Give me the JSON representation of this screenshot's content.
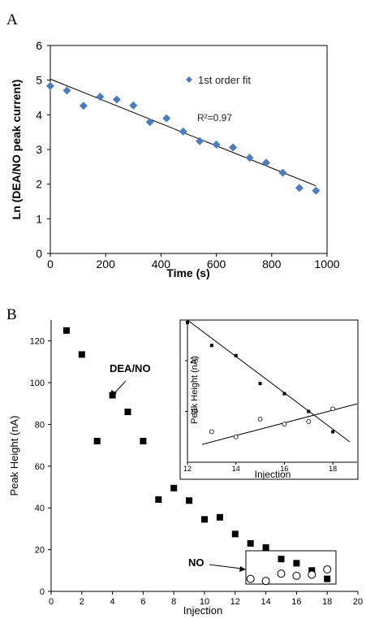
{
  "panels": {
    "a_label": "A",
    "b_label": "B"
  },
  "chart_data": [
    {
      "type": "scatter",
      "panel": "A",
      "xlabel": "Time (s)",
      "ylabel": "Ln (DEA/NO peak current)",
      "xlim": [
        0,
        1000
      ],
      "ylim": [
        0,
        6
      ],
      "xticks": [
        0,
        200,
        400,
        600,
        800,
        1000
      ],
      "yticks": [
        0,
        1,
        2,
        3,
        4,
        5,
        6
      ],
      "grid": false,
      "legend": "inside top-right",
      "series": [
        {
          "name": "1st order fit",
          "marker": "diamond",
          "color": "#4a7cc0",
          "x": [
            0,
            60,
            120,
            180,
            240,
            300,
            360,
            420,
            480,
            540,
            600,
            660,
            720,
            780,
            840,
            900,
            960
          ],
          "y": [
            4.83,
            4.7,
            4.26,
            4.52,
            4.44,
            4.27,
            3.79,
            3.9,
            3.52,
            3.24,
            3.14,
            3.06,
            2.76,
            2.62,
            2.33,
            1.89,
            1.81
          ]
        }
      ],
      "trendline": {
        "x": [
          0,
          960
        ],
        "y": [
          5.03,
          1.95
        ],
        "color": "#000000"
      },
      "annotations": [
        {
          "text": "R²=0.97"
        }
      ]
    },
    {
      "type": "scatter",
      "panel": "B",
      "xlabel": "Injection",
      "ylabel": "Peak Height (nA)",
      "xlim": [
        0,
        20
      ],
      "ylim": [
        0,
        130
      ],
      "xticks": [
        0,
        2,
        4,
        6,
        8,
        10,
        12,
        14,
        16,
        18,
        20
      ],
      "yticks": [
        0,
        20,
        40,
        60,
        80,
        100,
        120
      ],
      "grid": false,
      "series": [
        {
          "marker": "filled-square",
          "color": "#000000",
          "x": [
            1,
            2,
            3,
            4,
            5,
            6,
            7,
            8,
            9,
            10,
            11,
            12,
            13,
            14,
            15,
            16,
            17,
            18
          ],
          "y": [
            125,
            113.5,
            72,
            94,
            86,
            72,
            44,
            49.5,
            43.5,
            34.5,
            35.5,
            27.5,
            23,
            21,
            15.5,
            13.5,
            10,
            6
          ]
        },
        {
          "marker": "open-circle",
          "color": "#000000",
          "x": [
            13,
            14,
            15,
            16,
            17,
            18
          ],
          "y": [
            6,
            5,
            8.5,
            7.5,
            8,
            10.5
          ]
        }
      ],
      "annotations": [
        {
          "text": "DEA/NO",
          "target_x": 4,
          "target_y": 94
        },
        {
          "text": "NO",
          "target_x": 12.9,
          "target_y": 6.5
        }
      ],
      "inset": {
        "type": "scatter",
        "xlabel": "Injection",
        "ylabel": "Peak Height (nA)",
        "xlim": [
          12,
          19
        ],
        "ylim": [
          0,
          28
        ],
        "xticks": [
          12,
          14,
          16,
          18
        ],
        "yticks": [
          10,
          20
        ],
        "series": [
          {
            "marker": "filled-square",
            "x": [
              12,
              13,
              14,
              15,
              16,
              17,
              18
            ],
            "y": [
              27.5,
              23,
              21,
              15.5,
              13.5,
              10,
              6
            ]
          },
          {
            "marker": "open-circle",
            "x": [
              13,
              14,
              15,
              16,
              17,
              18
            ],
            "y": [
              6,
              5,
              8.5,
              7.5,
              8,
              10.5
            ]
          }
        ],
        "trendlines": [
          {
            "x": [
              12,
              18.7
            ],
            "y": [
              28,
              4
            ]
          },
          {
            "x": [
              12.6,
              19
            ],
            "y": [
              3.5,
              11.5
            ]
          }
        ]
      }
    }
  ]
}
